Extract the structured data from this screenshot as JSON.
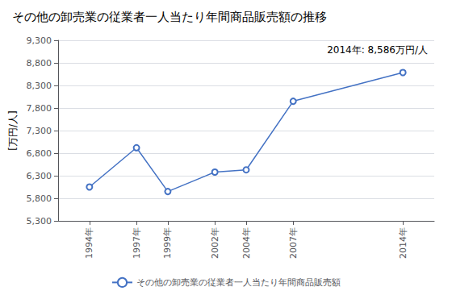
{
  "chart_data": {
    "type": "line",
    "title": "その他の卸売業の従業者一人当たり年間商品販売額の推移",
    "ylabel": "[万円/人]",
    "annotation": "2014年: 8,586万円/人",
    "x": [
      1994,
      1997,
      1999,
      2002,
      2004,
      2007,
      2014
    ],
    "series": [
      {
        "name": "その他の卸売業の従業者一人当たり年間商品販売額",
        "color": "#4472C4",
        "marker": "circle",
        "values": [
          6050,
          6920,
          5950,
          6380,
          6430,
          7950,
          8586
        ]
      }
    ],
    "xlim": [
      1992,
      2016
    ],
    "xticks": [
      {
        "value": 1994,
        "label": "1994年"
      },
      {
        "value": 1997,
        "label": "1997年"
      },
      {
        "value": 1999,
        "label": "1999年"
      },
      {
        "value": 2002,
        "label": "2002年"
      },
      {
        "value": 2004,
        "label": "2004年"
      },
      {
        "value": 2007,
        "label": "2007年"
      },
      {
        "value": 2014,
        "label": "2014年"
      }
    ],
    "ylim": [
      5300,
      9300
    ],
    "yticks": [
      {
        "value": 5300,
        "label": "5,300"
      },
      {
        "value": 5800,
        "label": "5,800"
      },
      {
        "value": 6300,
        "label": "6,300"
      },
      {
        "value": 6800,
        "label": "6,800"
      },
      {
        "value": 7300,
        "label": "7,300"
      },
      {
        "value": 7800,
        "label": "7,800"
      },
      {
        "value": 8300,
        "label": "8,300"
      },
      {
        "value": 8800,
        "label": "8,800"
      },
      {
        "value": 9300,
        "label": "9,300"
      }
    ],
    "grid": true,
    "legend": "bottom"
  }
}
